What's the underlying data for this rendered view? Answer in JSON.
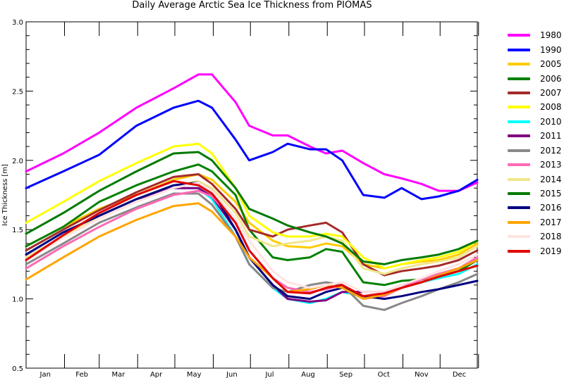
{
  "chart_data": {
    "type": "line",
    "title": "Daily Average Arctic Sea Ice Thickness from PIOMAS",
    "xlabel": "",
    "ylabel": "Ice Thickness  [m]",
    "ylim": [
      0.5,
      3.0
    ],
    "yticks": [
      "0.5",
      "1.0",
      "1.5",
      "2.0",
      "2.5",
      "3.0"
    ],
    "xlim": [
      1,
      365
    ],
    "months": [
      "Jan",
      "Feb",
      "Mar",
      "Apr",
      "May",
      "Jun",
      "Jul",
      "Aug",
      "Sep",
      "Oct",
      "Nov",
      "Dec"
    ],
    "x": [
      1,
      31,
      60,
      90,
      120,
      140,
      151,
      170,
      181,
      200,
      212,
      230,
      243,
      256,
      273,
      290,
      304,
      320,
      334,
      350,
      365
    ],
    "series": [
      {
        "name": "1980",
        "color": "#ff00ff",
        "values": [
          1.92,
          2.05,
          2.2,
          2.38,
          2.52,
          2.62,
          2.62,
          2.42,
          2.25,
          2.18,
          2.18,
          2.1,
          2.05,
          2.07,
          1.98,
          1.9,
          1.87,
          1.83,
          1.78,
          1.78,
          1.84
        ]
      },
      {
        "name": "1990",
        "color": "#0000ff",
        "values": [
          1.8,
          1.92,
          2.04,
          2.25,
          2.38,
          2.43,
          2.38,
          2.15,
          2.0,
          2.06,
          2.12,
          2.08,
          2.08,
          2.0,
          1.75,
          1.73,
          1.8,
          1.72,
          1.74,
          1.78,
          1.86
        ]
      },
      {
        "name": "2005",
        "color": "#ffcc00",
        "values": [
          1.38,
          1.52,
          1.65,
          1.75,
          1.86,
          1.9,
          1.86,
          1.7,
          1.55,
          1.42,
          1.38,
          1.37,
          1.4,
          1.38,
          1.25,
          1.22,
          1.25,
          1.27,
          1.28,
          1.32,
          1.4
        ]
      },
      {
        "name": "2006",
        "color": "#008000",
        "values": [
          1.38,
          1.52,
          1.7,
          1.82,
          1.92,
          1.97,
          1.92,
          1.75,
          1.5,
          1.3,
          1.28,
          1.3,
          1.36,
          1.34,
          1.12,
          1.1,
          1.13,
          1.14,
          1.16,
          1.2,
          1.28
        ]
      },
      {
        "name": "2007",
        "color": "#a52a2a",
        "values": [
          1.35,
          1.5,
          1.64,
          1.77,
          1.88,
          1.9,
          1.83,
          1.65,
          1.5,
          1.45,
          1.5,
          1.53,
          1.55,
          1.48,
          1.25,
          1.17,
          1.2,
          1.22,
          1.24,
          1.28,
          1.35
        ]
      },
      {
        "name": "2008",
        "color": "#ffff00",
        "values": [
          1.55,
          1.7,
          1.85,
          1.98,
          2.1,
          2.12,
          2.05,
          1.8,
          1.6,
          1.48,
          1.45,
          1.45,
          1.47,
          1.45,
          1.3,
          1.22,
          1.25,
          1.28,
          1.3,
          1.34,
          1.42
        ]
      },
      {
        "name": "2010",
        "color": "#00ffff",
        "values": [
          1.32,
          1.48,
          1.6,
          1.72,
          1.8,
          1.8,
          1.72,
          1.45,
          1.25,
          1.08,
          1.0,
          0.97,
          1.0,
          1.05,
          1.02,
          1.03,
          1.08,
          1.12,
          1.15,
          1.18,
          1.25
        ]
      },
      {
        "name": "2011",
        "color": "#800080",
        "values": [
          1.3,
          1.45,
          1.6,
          1.72,
          1.8,
          1.8,
          1.74,
          1.5,
          1.3,
          1.1,
          1.0,
          0.98,
          0.99,
          1.05,
          1.05,
          1.05,
          1.1,
          1.14,
          1.18,
          1.22,
          1.28
        ]
      },
      {
        "name": "2012",
        "color": "#888888",
        "values": [
          1.25,
          1.4,
          1.55,
          1.66,
          1.76,
          1.76,
          1.68,
          1.45,
          1.25,
          1.08,
          1.05,
          1.1,
          1.12,
          1.1,
          0.95,
          0.92,
          0.97,
          1.02,
          1.07,
          1.12,
          1.18
        ]
      },
      {
        "name": "2013",
        "color": "#ff69b4",
        "values": [
          1.22,
          1.38,
          1.52,
          1.65,
          1.75,
          1.78,
          1.74,
          1.55,
          1.35,
          1.15,
          1.08,
          1.05,
          1.07,
          1.1,
          1.0,
          1.02,
          1.08,
          1.14,
          1.18,
          1.22,
          1.3
        ]
      },
      {
        "name": "2014",
        "color": "#f0e68c",
        "values": [
          1.3,
          1.45,
          1.6,
          1.72,
          1.82,
          1.85,
          1.8,
          1.62,
          1.45,
          1.38,
          1.4,
          1.42,
          1.45,
          1.42,
          1.22,
          1.18,
          1.22,
          1.25,
          1.27,
          1.3,
          1.38
        ]
      },
      {
        "name": "2015",
        "color": "#007a00",
        "values": [
          1.47,
          1.62,
          1.78,
          1.92,
          2.05,
          2.06,
          2.0,
          1.8,
          1.65,
          1.58,
          1.53,
          1.48,
          1.45,
          1.4,
          1.27,
          1.25,
          1.28,
          1.3,
          1.32,
          1.36,
          1.42
        ]
      },
      {
        "name": "2016",
        "color": "#000080",
        "values": [
          1.32,
          1.48,
          1.6,
          1.72,
          1.82,
          1.84,
          1.78,
          1.5,
          1.3,
          1.1,
          1.02,
          1.0,
          1.05,
          1.08,
          1.02,
          1.0,
          1.02,
          1.05,
          1.07,
          1.1,
          1.13
        ]
      },
      {
        "name": "2017",
        "color": "#ffa500",
        "values": [
          1.14,
          1.3,
          1.45,
          1.57,
          1.67,
          1.69,
          1.63,
          1.45,
          1.3,
          1.15,
          1.05,
          1.07,
          1.1,
          1.08,
          1.0,
          1.03,
          1.08,
          1.12,
          1.17,
          1.22,
          1.28
        ]
      },
      {
        "name": "2018",
        "color": "#ffe4e1",
        "values": [
          1.28,
          1.44,
          1.58,
          1.7,
          1.8,
          1.84,
          1.78,
          1.58,
          1.42,
          1.2,
          1.12,
          1.08,
          1.1,
          1.12,
          1.05,
          1.05,
          1.1,
          1.15,
          1.2,
          1.25,
          1.32
        ]
      },
      {
        "name": "2019",
        "color": "#e00000",
        "values": [
          1.28,
          1.46,
          1.62,
          1.75,
          1.85,
          1.82,
          1.76,
          1.55,
          1.35,
          1.15,
          1.05,
          1.04,
          1.08,
          1.1,
          1.02,
          1.04,
          1.08,
          1.12,
          1.16,
          1.2,
          1.24
        ]
      }
    ]
  }
}
